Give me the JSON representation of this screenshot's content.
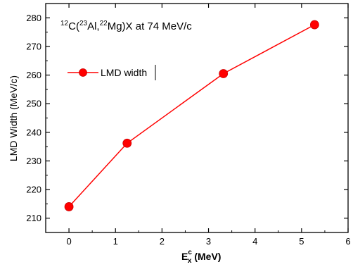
{
  "chart_data": {
    "type": "line",
    "title": "",
    "annotation": {
      "pre1": "12",
      "a": "C(",
      "sup2": "23",
      "b": "Al,",
      "sup3": "22",
      "c": "Mg)X at 74 MeV/c"
    },
    "xlabel": {
      "main": "E",
      "sup": "c",
      "sub": "x",
      "rest": " (MeV)"
    },
    "ylabel": "LMD Width (MeV/c)",
    "xlim": [
      -0.5,
      6
    ],
    "ylim": [
      205,
      285
    ],
    "xticks": [
      0,
      1,
      2,
      3,
      4,
      5,
      6
    ],
    "yticks": [
      210,
      220,
      230,
      240,
      250,
      260,
      270,
      280
    ],
    "grid": false,
    "legend_position": "upper-left",
    "series": [
      {
        "name": "LMD width",
        "color": "#ff0000",
        "marker": "circle",
        "x": [
          0,
          1.25,
          3.32,
          5.28
        ],
        "y": [
          214,
          236.2,
          260.5,
          277.6
        ]
      }
    ]
  }
}
